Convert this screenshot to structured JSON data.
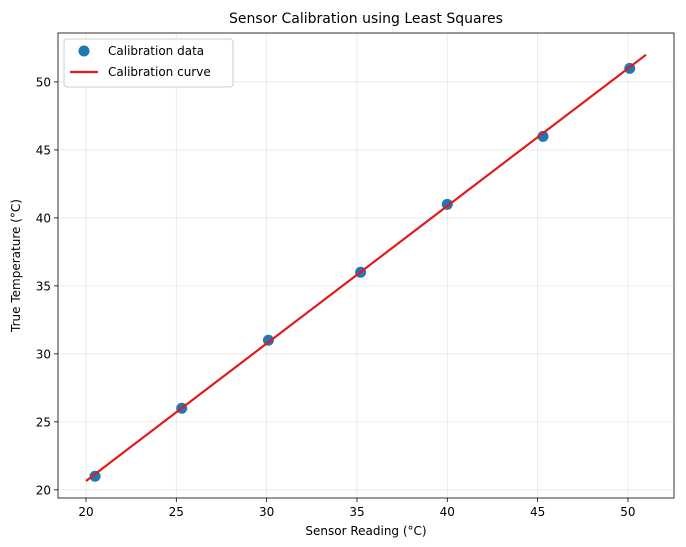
{
  "chart_data": {
    "type": "scatter",
    "title": "Sensor Calibration using Least Squares",
    "xlabel": "Sensor Reading (°C)",
    "ylabel": "True Temperature (°C)",
    "xlim": [
      18.45,
      52.55
    ],
    "ylim": [
      19.4,
      53.6
    ],
    "xticks": [
      20,
      25,
      30,
      35,
      40,
      45,
      50
    ],
    "yticks": [
      20,
      25,
      30,
      35,
      40,
      45,
      50
    ],
    "grid": true,
    "legend_position": "top-left",
    "series": [
      {
        "name": "Calibration data",
        "kind": "scatter",
        "color": "#1f77b4",
        "x": [
          20.5,
          25.3,
          30.1,
          35.2,
          40.0,
          45.3,
          50.1
        ],
        "y": [
          21,
          26,
          31,
          36,
          41,
          46,
          51
        ]
      },
      {
        "name": "Calibration curve",
        "kind": "line",
        "color": "#e31a1c",
        "x": [
          20.0,
          51.0
        ],
        "y": [
          20.65,
          52.0
        ]
      }
    ]
  }
}
